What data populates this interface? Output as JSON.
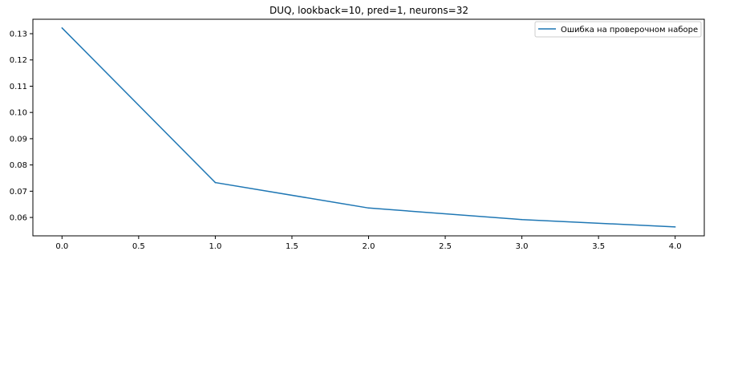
{
  "chart_data": {
    "type": "line",
    "title": "DUQ, lookback=10, pred=1, neurons=32",
    "xlabel": "",
    "ylabel": "",
    "x": [
      0,
      1,
      2,
      3,
      4
    ],
    "series": [
      {
        "name": "Ошибка на проверочном наборе",
        "color": "#1f77b4",
        "values": [
          0.1322,
          0.0733,
          0.0636,
          0.0592,
          0.0564
        ]
      }
    ],
    "xlim": [
      -0.19,
      4.19
    ],
    "ylim": [
      0.053,
      0.1355
    ],
    "xticks": [
      "0.0",
      "0.5",
      "1.0",
      "1.5",
      "2.0",
      "2.5",
      "3.0",
      "3.5",
      "4.0"
    ],
    "yticks": [
      "0.06",
      "0.07",
      "0.08",
      "0.09",
      "0.10",
      "0.11",
      "0.12",
      "0.13"
    ],
    "grid": false,
    "legend": "top-right"
  }
}
